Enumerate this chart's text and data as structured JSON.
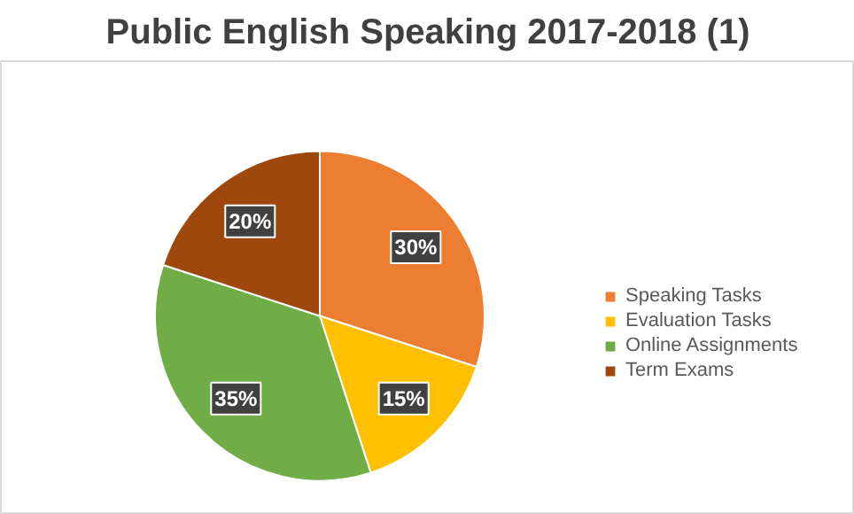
{
  "chart_data": {
    "type": "pie",
    "title": "Public English Speaking 2017-2018 (1)",
    "categories": [
      "Speaking Tasks",
      "Evaluation Tasks",
      "Online Assignments",
      "Term Exams"
    ],
    "values": [
      30,
      15,
      35,
      20
    ],
    "colors": [
      "#ed7d31",
      "#ffc000",
      "#70ad47",
      "#9e480e"
    ],
    "value_labels": [
      "30%",
      "15%",
      "35%",
      "20%"
    ],
    "legend": "right"
  }
}
